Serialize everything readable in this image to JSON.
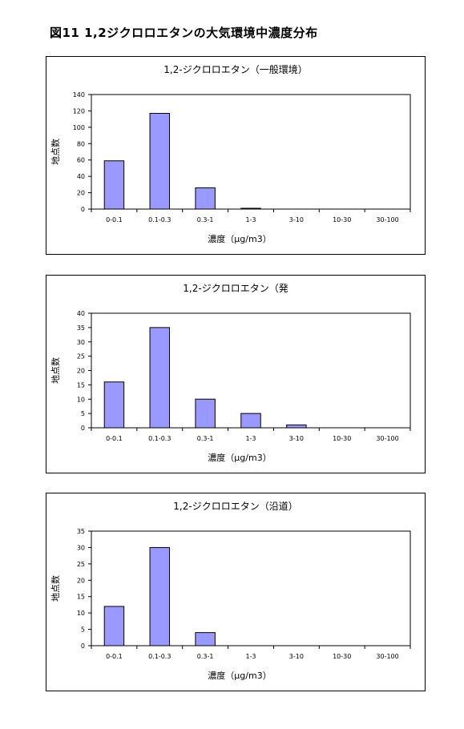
{
  "page": {
    "figure_title": "図11  1,2ジクロロエタンの大気環境中濃度分布"
  },
  "colors": {
    "bar_fill": "#9999ff",
    "bar_stroke": "#000000",
    "plot_border": "#000000",
    "grid": "#c0c0c0"
  },
  "chart_data": [
    {
      "type": "bar",
      "title": "1,2-ジクロロエタン（一般環境）",
      "categories": [
        "0-0.1",
        "0.1-0.3",
        "0.3-1",
        "1-3",
        "3-10",
        "10-30",
        "30-100"
      ],
      "values": [
        59,
        117,
        26,
        1,
        0,
        0,
        0
      ],
      "xlabel": "濃度（μg/m3）",
      "ylabel": "地点数",
      "ylim": [
        0,
        140
      ],
      "yticks": [
        0,
        20,
        40,
        60,
        80,
        100,
        120,
        140
      ],
      "grid": false,
      "legend": "none"
    },
    {
      "type": "bar",
      "title": "1,2-ジクロロエタン（発",
      "categories": [
        "0-0.1",
        "0.1-0.3",
        "0.3-1",
        "1-3",
        "3-10",
        "10-30",
        "30-100"
      ],
      "values": [
        16,
        35,
        10,
        5,
        1,
        0,
        0
      ],
      "xlabel": "濃度（μg/m3）",
      "ylabel": "地点数",
      "ylim": [
        0,
        40
      ],
      "yticks": [
        0,
        5,
        10,
        15,
        20,
        25,
        30,
        35,
        40
      ],
      "grid": false,
      "legend": "none"
    },
    {
      "type": "bar",
      "title": "1,2-ジクロロエタン（沿道）",
      "categories": [
        "0-0.1",
        "0.1-0.3",
        "0.3-1",
        "1-3",
        "3-10",
        "10-30",
        "30-100"
      ],
      "values": [
        12,
        30,
        4,
        0,
        0,
        0,
        0
      ],
      "xlabel": "濃度（μg/m3）",
      "ylabel": "地点数",
      "ylim": [
        0,
        35
      ],
      "yticks": [
        0,
        5,
        10,
        15,
        20,
        25,
        30,
        35
      ],
      "grid": false,
      "legend": "none"
    }
  ]
}
